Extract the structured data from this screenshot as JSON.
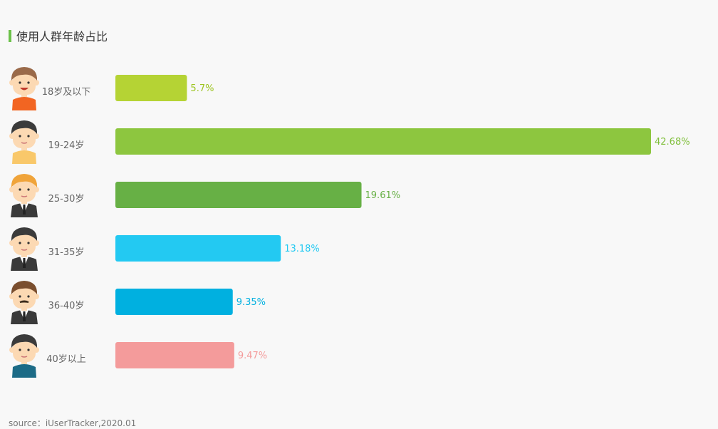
{
  "page": {
    "title": "使用人群年龄占比"
  },
  "footer": {
    "source": "source：iUserTracker,2020.01"
  },
  "colors": {
    "title_accent": "#6cc24a",
    "bars": [
      "#b5d334",
      "#8dc63f",
      "#67b045",
      "#23c9f2",
      "#00b0e0",
      "#f49b9b"
    ],
    "labels": [
      "#9cc41f",
      "#7fbf3a",
      "#67b045",
      "#23c9f2",
      "#00b0e0",
      "#f49b9b"
    ]
  },
  "icons": [
    "boy-avatar-icon",
    "young-man-avatar-icon",
    "man-suit-avatar-icon",
    "man-suit-dark-avatar-icon",
    "man-mustache-avatar-icon",
    "man-casual-avatar-icon"
  ],
  "chart_data": {
    "type": "bar",
    "orientation": "horizontal",
    "title": "使用人群年龄占比",
    "categories": [
      "18岁及以下",
      "19-24岁",
      "25-30岁",
      "31-35岁",
      "36-40岁",
      "40岁以上"
    ],
    "values": [
      5.7,
      42.68,
      19.61,
      13.18,
      9.35,
      9.47
    ],
    "value_labels": [
      "5.7%",
      "42.68%",
      "19.61%",
      "13.18%",
      "9.35%",
      "9.47%"
    ],
    "unit": "%",
    "grid": false,
    "legend": "none"
  }
}
